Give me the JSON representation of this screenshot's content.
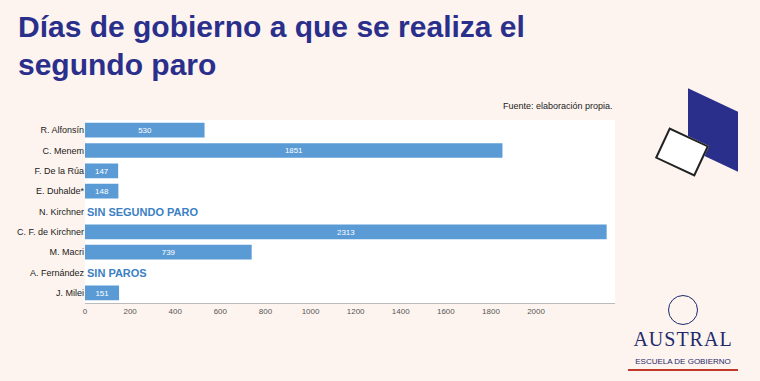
{
  "chart_data": {
    "type": "bar",
    "orientation": "horizontal",
    "title": "Días de gobierno a que se realiza el segundo paro",
    "source": "Fuente: elaboración propia.",
    "logo": [
      "AUSTRAL",
      "ESCUELA DE GOBIERNO"
    ],
    "categories": [
      "R. Alfonsín",
      "C. Menem",
      "F. De la Rúa",
      "E. Duhalde*",
      "N. Kirchner",
      "C. F. de Kirchner",
      "M. Macri",
      "A. Fernández",
      "J. Milei"
    ],
    "values": [
      530,
      1851,
      147,
      148,
      null,
      2313,
      739,
      null,
      151
    ],
    "annotations": [
      {
        "category": "N. Kirchner",
        "text": "SIN SEGUNDO PARO"
      },
      {
        "category": "A. Fernández",
        "text": "SIN PAROS"
      }
    ],
    "color": "#5b9bd5",
    "data_labels": true,
    "grid": false,
    "xlim": [
      0,
      2350
    ],
    "xticks": [
      0,
      200,
      400,
      600,
      800,
      1000,
      1200,
      1400,
      1600,
      1800,
      2000
    ]
  }
}
